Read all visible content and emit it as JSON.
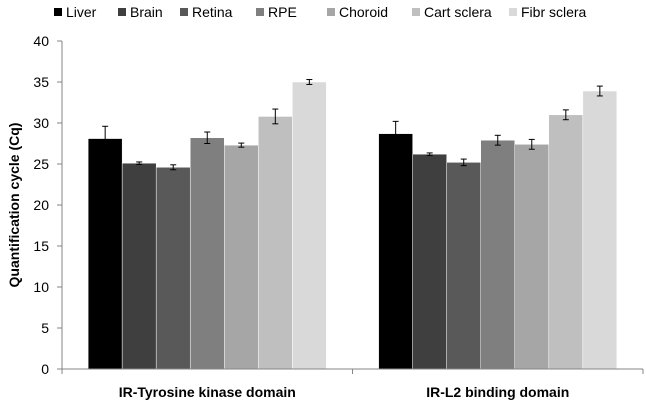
{
  "chart_data": {
    "type": "bar",
    "title": "",
    "xlabel": "",
    "ylabel": "Quantification cycle (Cq)",
    "ylim": [
      0,
      40
    ],
    "yticks": [
      0,
      5,
      10,
      15,
      20,
      25,
      30,
      35,
      40
    ],
    "grid": false,
    "legend_position": "top",
    "categories": [
      "IR-Tyrosine kinase domain",
      "IR-L2 binding domain"
    ],
    "series": [
      {
        "name": "Liver",
        "color": "#000000",
        "values": [
          28.1,
          28.7
        ],
        "errors": [
          1.5,
          1.5
        ]
      },
      {
        "name": "Brain",
        "color": "#3f3f3f",
        "values": [
          25.1,
          26.2
        ],
        "errors": [
          0.15,
          0.15
        ]
      },
      {
        "name": "Retina",
        "color": "#595959",
        "values": [
          24.6,
          25.2
        ],
        "errors": [
          0.3,
          0.4
        ]
      },
      {
        "name": "RPE",
        "color": "#7f7f7f",
        "values": [
          28.2,
          27.9
        ],
        "errors": [
          0.7,
          0.6
        ]
      },
      {
        "name": "Choroid",
        "color": "#a6a6a6",
        "values": [
          27.3,
          27.4
        ],
        "errors": [
          0.25,
          0.6
        ]
      },
      {
        "name": "Cart sclera",
        "color": "#bfbfbf",
        "values": [
          30.8,
          31.0
        ],
        "errors": [
          0.9,
          0.6
        ]
      },
      {
        "name": "Fibr sclera",
        "color": "#d9d9d9",
        "values": [
          35.0,
          33.9
        ],
        "errors": [
          0.3,
          0.6
        ]
      }
    ]
  }
}
